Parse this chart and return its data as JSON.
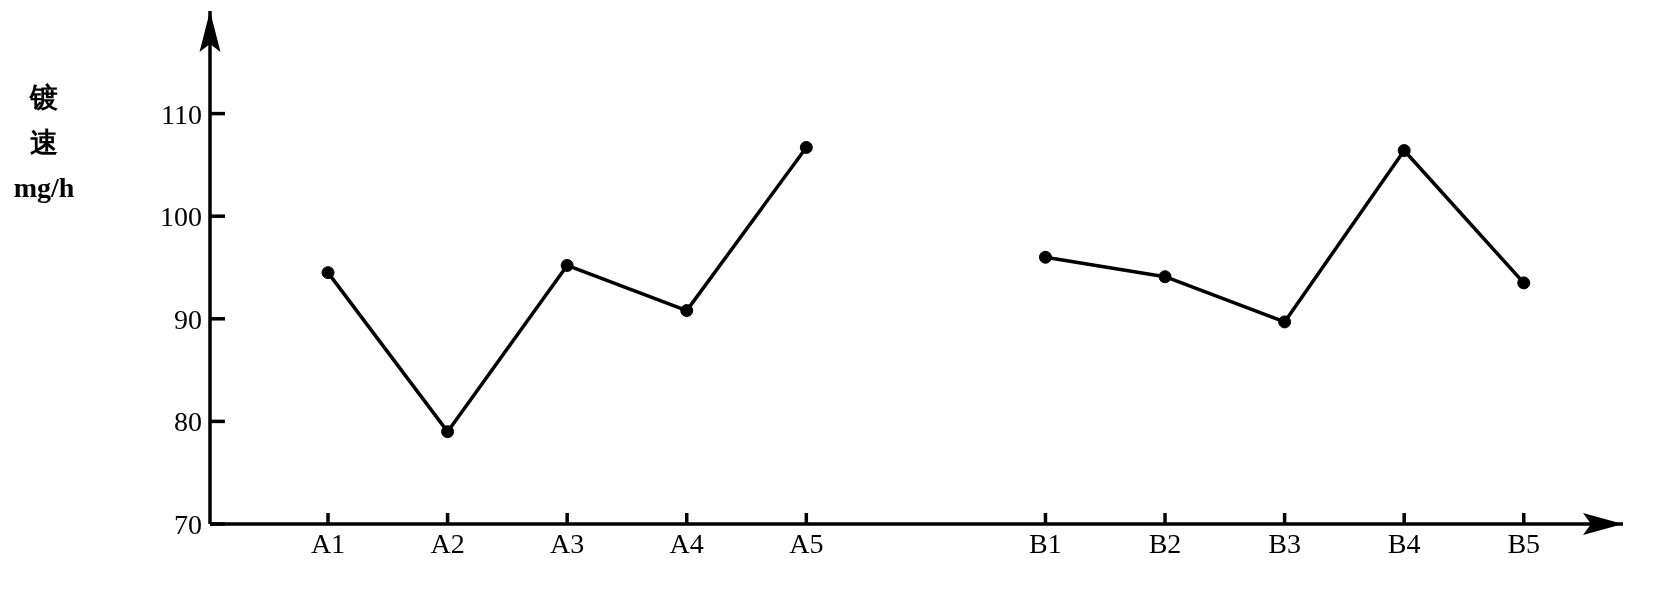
{
  "chart_data": {
    "type": "line",
    "ylabel": "镀速mg/h",
    "categories": [
      "A1",
      "A2",
      "A3",
      "A4",
      "A5",
      null,
      "B1",
      "B2",
      "B3",
      "B4",
      "B5"
    ],
    "series": [
      {
        "color": "#000000",
        "values": [
          94.5,
          79,
          95.2,
          90.8,
          106.7,
          null,
          96,
          94.1,
          89.7,
          106.4,
          93.5
        ]
      }
    ],
    "ylim": [
      70,
      120
    ],
    "yticks": [
      70,
      80,
      90,
      100,
      110
    ],
    "grid": false,
    "marker": "circle",
    "line_style": "solid"
  }
}
